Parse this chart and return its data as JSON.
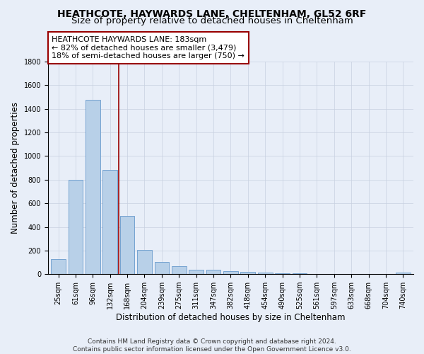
{
  "title": "HEATHCOTE, HAYWARDS LANE, CHELTENHAM, GL52 6RF",
  "subtitle": "Size of property relative to detached houses in Cheltenham",
  "xlabel": "Distribution of detached houses by size in Cheltenham",
  "ylabel": "Number of detached properties",
  "categories": [
    "25sqm",
    "61sqm",
    "96sqm",
    "132sqm",
    "168sqm",
    "204sqm",
    "239sqm",
    "275sqm",
    "311sqm",
    "347sqm",
    "382sqm",
    "418sqm",
    "454sqm",
    "490sqm",
    "525sqm",
    "561sqm",
    "597sqm",
    "633sqm",
    "668sqm",
    "704sqm",
    "740sqm"
  ],
  "values": [
    125,
    800,
    1475,
    880,
    495,
    205,
    105,
    65,
    40,
    35,
    25,
    20,
    15,
    5,
    5,
    2,
    2,
    2,
    2,
    2,
    15
  ],
  "bar_color": "#b8d0e8",
  "bar_edge_color": "#6699cc",
  "vline_x": 3.5,
  "vline_color": "#990000",
  "annotation_text": "HEATHCOTE HAYWARDS LANE: 183sqm\n← 82% of detached houses are smaller (3,479)\n18% of semi-detached houses are larger (750) →",
  "annotation_box_color": "#ffffff",
  "annotation_box_edge": "#990000",
  "footer": "Contains HM Land Registry data © Crown copyright and database right 2024.\nContains public sector information licensed under the Open Government Licence v3.0.",
  "ylim": [
    0,
    1800
  ],
  "background_color": "#e8eef8",
  "grid_color": "#c8d0e0",
  "title_fontsize": 10,
  "subtitle_fontsize": 9.5,
  "axis_label_fontsize": 8.5,
  "tick_fontsize": 7,
  "footer_fontsize": 6.5,
  "annotation_fontsize": 8
}
